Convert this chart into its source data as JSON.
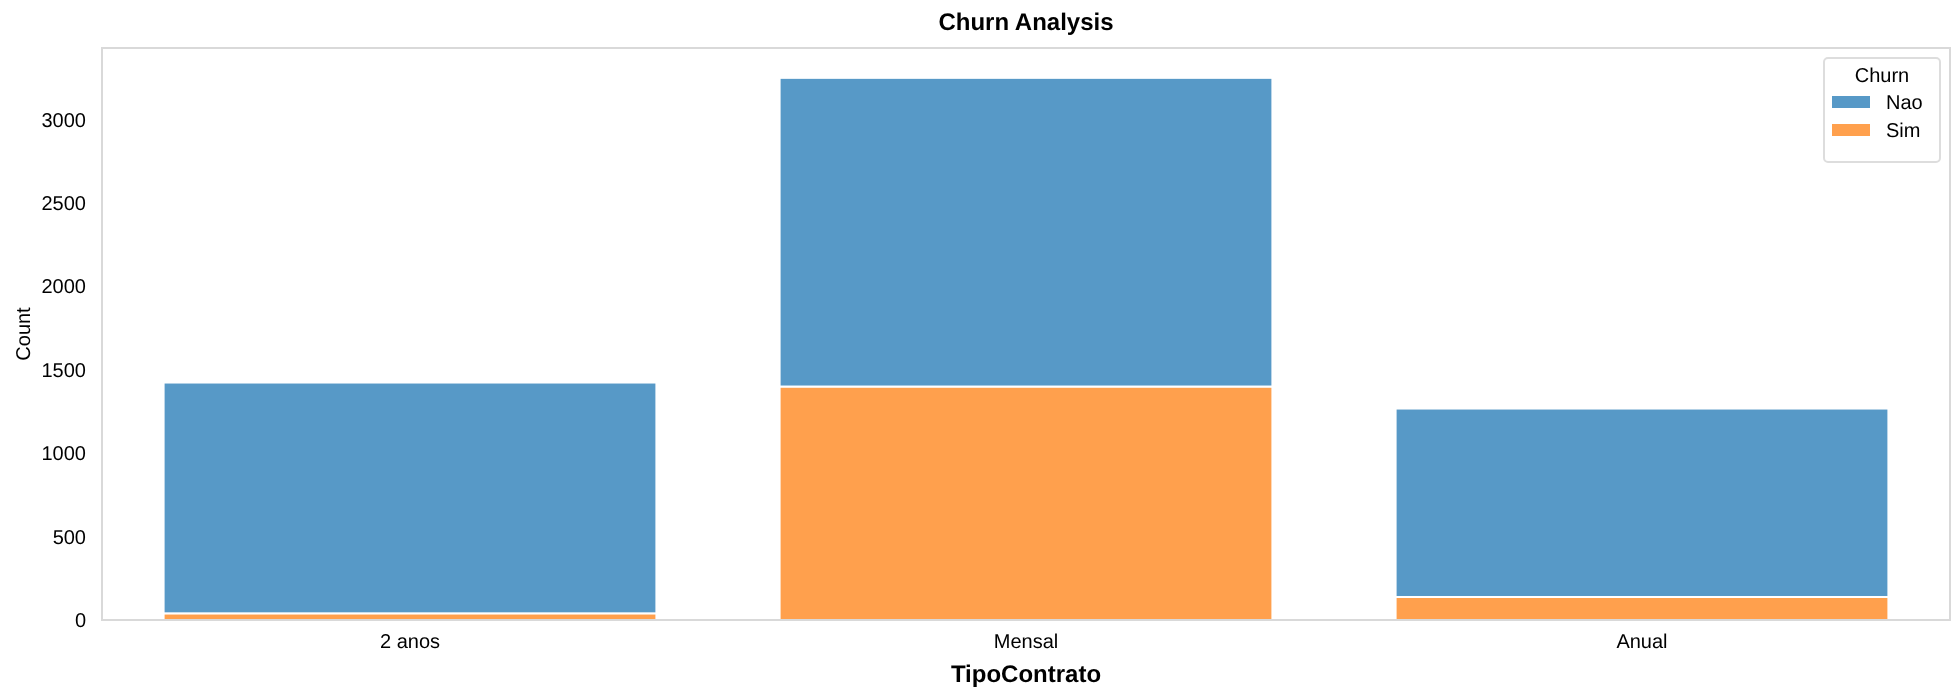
{
  "chart_data": {
    "type": "bar",
    "title": "Churn Analysis",
    "xlabel": "TipoContrato",
    "ylabel": "Count",
    "legend_title": "Churn",
    "categories": [
      "2 anos",
      "Mensal",
      "Anual"
    ],
    "series": [
      {
        "name": "Sim",
        "color": "#ffa04d",
        "values": [
          40,
          1400,
          138
        ]
      },
      {
        "name": "Nao",
        "color": "#5799c7",
        "values": [
          1384,
          1851,
          1130
        ]
      }
    ],
    "stacked": true,
    "ylim": [
      0,
      3430
    ],
    "yticks": [
      0,
      500,
      1000,
      1500,
      2000,
      2500,
      3000
    ],
    "grid": false,
    "legend": "top right"
  }
}
